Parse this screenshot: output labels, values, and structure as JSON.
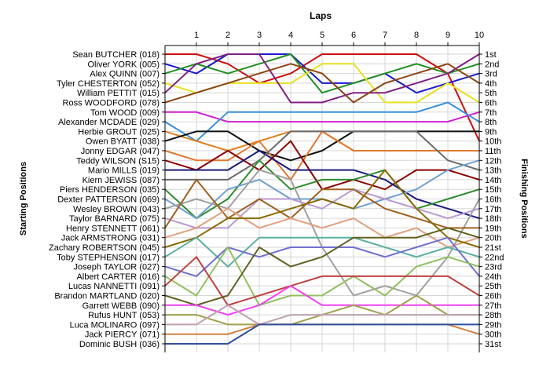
{
  "chart_data": {
    "type": "line",
    "title": "Laps",
    "ylabel_left": "Starting Positions",
    "ylabel_right": "Finishing Positions",
    "x": [
      1,
      2,
      3,
      4,
      5,
      6,
      7,
      8,
      9,
      10
    ],
    "xlim": [
      0,
      10
    ],
    "ylim": [
      1,
      31
    ],
    "y_inverted": true,
    "grid": true,
    "drivers": [
      "Sean BUTCHER (018)",
      "Oliver YORK (005)",
      "Alex QUINN (007)",
      "Tyler CHESTERTON (052)",
      "William PETTIT (015)",
      "Ross WOODFORD (078)",
      "Tom WOOD (009)",
      "Alexander MCDADE (029)",
      "Herbie GROUT (025)",
      "Owen BYATT (038)",
      "Jonny EDGAR (047)",
      "Teddy WILSON (S15)",
      "Mario MILLS (019)",
      "Kiern JEWISS (087)",
      "Piers HENDERSON (035)",
      "Dexter PATTERSON (069)",
      "Wesley BROWN (043)",
      "Taylor BARNARD (075)",
      "Henry STENNETT (061)",
      "Jack ARMSTRONG (031)",
      "Zachary ROBERTSON (045)",
      "Toby STEPHENSON (017)",
      "Joseph TAYLOR (027)",
      "Albert CARTER (016)",
      "Lucas NANNETTI (091)",
      "Brandon MARTLAND (020)",
      "Garrett WEBB (090)",
      "Rufus HUNT (053)",
      "Luca MOLINARO (097)",
      "Jack PIERCY (071)",
      "Dominic BUSH (036)"
    ],
    "finishing_labels": [
      "1st",
      "2nd",
      "3rd",
      "4th",
      "5th",
      "6th",
      "7th",
      "8th",
      "9th",
      "10th",
      "11th",
      "12th",
      "13th",
      "14th",
      "15th",
      "16th",
      "17th",
      "18th",
      "19th",
      "20th",
      "21st",
      "22nd",
      "23rd",
      "24th",
      "25th",
      "26th",
      "27th",
      "28th",
      "29th",
      "30th",
      "31st"
    ],
    "series": [
      {
        "name": "Sean BUTCHER (018)",
        "values": [
          1,
          2,
          4,
          3,
          1,
          1,
          1,
          1,
          3,
          10
        ]
      },
      {
        "name": "Oliver YORK (005)",
        "values": [
          3,
          1,
          1,
          1,
          4,
          4,
          3,
          5,
          4,
          3
        ]
      },
      {
        "name": "Alex QUINN (007)",
        "values": [
          2,
          3,
          2,
          1,
          5,
          4,
          3,
          2,
          3,
          2
        ]
      },
      {
        "name": "Tyler CHESTERTON (052)",
        "values": [
          5,
          4,
          4,
          4,
          2,
          2,
          6,
          6,
          4,
          6
        ]
      },
      {
        "name": "William PETTIT (015)",
        "values": [
          2,
          1,
          1,
          6,
          6,
          5,
          5,
          4,
          3,
          1
        ]
      },
      {
        "name": "Ross WOODFORD (078)",
        "values": [
          5,
          4,
          3,
          2,
          3,
          6,
          4,
          3,
          2,
          4
        ]
      },
      {
        "name": "Tom WOOD (009)",
        "values": [
          7,
          8,
          8,
          8,
          8,
          8,
          8,
          8,
          8,
          7
        ]
      },
      {
        "name": "Alexander MCDADE (029)",
        "values": [
          10,
          7,
          7,
          7,
          7,
          7,
          7,
          7,
          6,
          8
        ]
      },
      {
        "name": "Herbie GROUT (025)",
        "values": [
          10,
          11,
          10,
          9,
          9,
          11,
          11,
          11,
          11,
          11
        ]
      },
      {
        "name": "Owen BYATT (038)",
        "values": [
          9,
          9,
          11,
          12,
          11,
          9,
          9,
          9,
          9,
          9
        ]
      },
      {
        "name": "Jonny EDGAR (047)",
        "values": [
          12,
          12,
          10,
          14,
          9,
          11,
          11,
          11,
          11,
          11
        ]
      },
      {
        "name": "Teddy WILSON (S15)",
        "values": [
          13,
          11,
          13,
          10,
          15,
          14,
          15,
          13,
          13,
          14
        ]
      },
      {
        "name": "Mario MILLS (019)",
        "values": [
          13,
          13,
          11,
          13,
          13,
          13,
          14,
          16,
          17,
          18
        ]
      },
      {
        "name": "Kiern JEWISS (087)",
        "values": [
          14,
          14,
          12,
          9,
          9,
          9,
          9,
          9,
          12,
          13
        ]
      },
      {
        "name": "Piers HENDERSON (035)",
        "values": [
          18,
          16,
          12,
          15,
          14,
          14,
          13,
          17,
          16,
          15
        ]
      },
      {
        "name": "Dexter PATTERSON (069)",
        "values": [
          18,
          15,
          14,
          16,
          16,
          17,
          16,
          15,
          13,
          12
        ]
      },
      {
        "name": "Wesley BROWN (043)",
        "values": [
          16,
          17,
          13,
          14,
          21,
          26,
          25,
          26,
          22,
          16
        ]
      },
      {
        "name": "Taylor BARNARD (075)",
        "values": [
          19,
          19,
          16,
          16,
          17,
          15,
          16,
          17,
          18,
          17
        ]
      },
      {
        "name": "Henry STENNETT (061)",
        "values": [
          14,
          18,
          16,
          18,
          15,
          15,
          17,
          18,
          19,
          19
        ]
      },
      {
        "name": "Jack ARMSTRONG (031)",
        "values": [
          19,
          17,
          19,
          18,
          19,
          18,
          20,
          19,
          21,
          20
        ]
      },
      {
        "name": "Zachary ROBERTSON (045)",
        "values": [
          20,
          18,
          18,
          17,
          16,
          17,
          13,
          17,
          20,
          21
        ]
      },
      {
        "name": "Toby STEPHENSON (017)",
        "values": [
          20,
          23,
          20,
          20,
          20,
          20,
          21,
          22,
          21,
          22
        ]
      },
      {
        "name": "Joseph TAYLOR (027)",
        "values": [
          24,
          21,
          22,
          21,
          21,
          21,
          22,
          21,
          20,
          24
        ]
      },
      {
        "name": "Albert CARTER (016)",
        "values": [
          26,
          21,
          27,
          26,
          26,
          24,
          26,
          23,
          22,
          23
        ]
      },
      {
        "name": "Lucas NANNETTI (091)",
        "values": [
          22,
          27,
          26,
          25,
          24,
          24,
          24,
          24,
          24,
          26
        ]
      },
      {
        "name": "Brandon MARTLAND (020)",
        "values": [
          27,
          26,
          21,
          23,
          22,
          20,
          20,
          20,
          19,
          20
        ]
      },
      {
        "name": "Garrett WEBB (090)",
        "values": [
          27,
          28,
          27,
          25,
          27,
          27,
          27,
          27,
          27,
          27
        ]
      },
      {
        "name": "Rufus HUNT (053)",
        "values": [
          28,
          29,
          29,
          29,
          28,
          27,
          28,
          26,
          28,
          28
        ]
      },
      {
        "name": "Luca MOLINARO (097)",
        "values": [
          29,
          27,
          29,
          28,
          28,
          28,
          28,
          28,
          28,
          28
        ]
      },
      {
        "name": "Jack PIERCY (071)",
        "values": [
          30,
          30,
          29,
          29,
          29,
          29,
          29,
          29,
          29,
          30
        ]
      },
      {
        "name": "Dominic BUSH (036)",
        "values": [
          31,
          31,
          29,
          29,
          29,
          29,
          29,
          29,
          29,
          29
        ]
      }
    ],
    "colors": [
      "#cc1010",
      "#1a1acc",
      "#209020",
      "#e8e020",
      "#802080",
      "#8b4513",
      "#d020d0",
      "#3a8fd8",
      "#e08020",
      "#101010",
      "#e07830",
      "#8b0000",
      "#1a1a7a",
      "#6a6a6a",
      "#2e8b2e",
      "#70a0d0",
      "#a0a0a0",
      "#b89ad0",
      "#a06020",
      "#e0a080",
      "#8a6a00",
      "#5ab0a0",
      "#7070d0",
      "#90c060",
      "#c04040",
      "#606020",
      "#f040f0",
      "#a0a050",
      "#c0a0b0",
      "#d08040",
      "#3050a0"
    ]
  }
}
